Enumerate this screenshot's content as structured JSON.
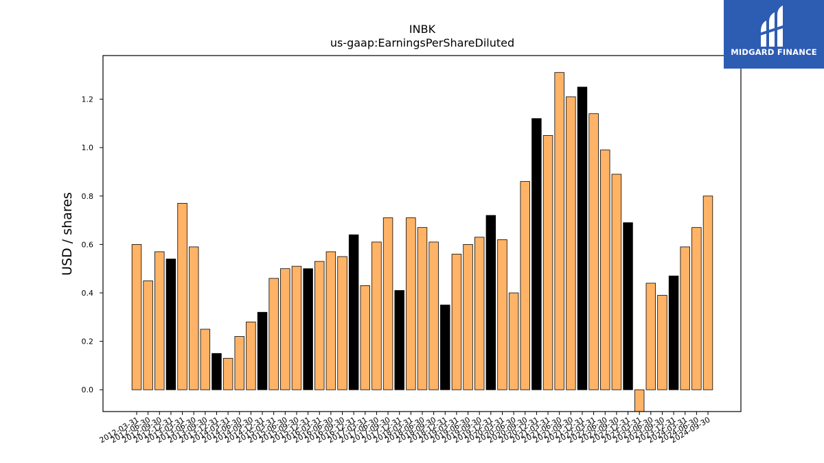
{
  "logo": {
    "text": "MIDGARD FINANCE",
    "icon": "midgard-logo-icon",
    "bg_color": "#2d5cb3"
  },
  "colors": {
    "bar_orange": "#ffb366",
    "bar_black": "#000000",
    "axis": "#000000"
  },
  "chart_data": {
    "type": "bar",
    "title": "INBK",
    "subtitle": "us-gaap:EarningsPerShareDiluted",
    "xlabel": "",
    "ylabel": "USD / shares",
    "ylim": [
      -0.09,
      1.38
    ],
    "yticks": [
      0.0,
      0.2,
      0.4,
      0.6,
      0.8,
      1.0,
      1.2
    ],
    "grid": false,
    "categories": [
      "2012-03-31",
      "2012-06-30",
      "2012-09-30",
      "2012-12-31",
      "2013-03-31",
      "2013-06-30",
      "2013-09-30",
      "2013-12-31",
      "2014-03-31",
      "2014-06-30",
      "2014-09-30",
      "2014-12-31",
      "2015-03-31",
      "2015-06-30",
      "2015-09-30",
      "2015-12-31",
      "2016-03-31",
      "2016-06-30",
      "2016-09-30",
      "2016-12-31",
      "2017-03-31",
      "2017-06-30",
      "2017-09-30",
      "2017-12-31",
      "2018-03-31",
      "2018-06-30",
      "2018-09-30",
      "2018-12-31",
      "2019-03-31",
      "2019-06-30",
      "2019-09-30",
      "2019-12-31",
      "2020-03-31",
      "2020-06-30",
      "2020-09-30",
      "2020-12-31",
      "2021-03-31",
      "2021-06-30",
      "2021-09-30",
      "2021-12-31",
      "2022-03-31",
      "2022-06-30",
      "2022-09-30",
      "2022-12-31",
      "2023-03-31",
      "2023-06-30",
      "2023-09-30",
      "2023-12-31",
      "2024-03-31",
      "2024-06-30",
      "2024-09-30"
    ],
    "values": [
      0.6,
      0.45,
      0.57,
      0.54,
      0.77,
      0.59,
      0.25,
      0.15,
      0.13,
      0.22,
      0.28,
      0.32,
      0.46,
      0.5,
      0.51,
      0.5,
      0.53,
      0.57,
      0.55,
      0.64,
      0.43,
      0.61,
      0.71,
      0.41,
      0.71,
      0.67,
      0.61,
      0.35,
      0.56,
      0.6,
      0.63,
      0.72,
      0.62,
      0.4,
      0.86,
      1.12,
      1.05,
      1.31,
      1.21,
      1.25,
      1.14,
      0.99,
      0.89,
      0.69,
      -0.09,
      0.44,
      0.39,
      0.47,
      0.59,
      0.67,
      0.8
    ],
    "highlighted": [
      false,
      false,
      false,
      true,
      false,
      false,
      false,
      true,
      false,
      false,
      false,
      true,
      false,
      false,
      false,
      true,
      false,
      false,
      false,
      true,
      false,
      false,
      false,
      true,
      false,
      false,
      false,
      true,
      false,
      false,
      false,
      true,
      false,
      false,
      false,
      true,
      false,
      false,
      false,
      true,
      false,
      false,
      false,
      true,
      false,
      false,
      false,
      true,
      false,
      false,
      false
    ]
  }
}
